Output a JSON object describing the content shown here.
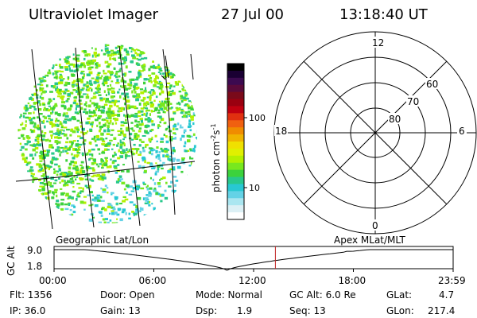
{
  "header": {
    "instrument": "Ultraviolet Imager",
    "date": "27 Jul 00",
    "time": "13:18:40 UT"
  },
  "colorbar": {
    "unit": "photon cm-2s-1",
    "tick_labels": [
      "100",
      "10"
    ],
    "colors": [
      "#000000",
      "#1a0033",
      "#3c0a50",
      "#5a0a3a",
      "#7a0a1a",
      "#9a0010",
      "#c00010",
      "#e03010",
      "#f06010",
      "#f08c00",
      "#f0b400",
      "#f0e000",
      "#e0f000",
      "#b4f000",
      "#78e81e",
      "#3cd23c",
      "#28c88c",
      "#28c8d2",
      "#64d2e6",
      "#aae6f0",
      "#dcf0f5",
      "#ffffff"
    ]
  },
  "polar": {
    "ring_labels": [
      "60",
      "70",
      "80"
    ],
    "mlt_labels": {
      "top": "12",
      "bottom": "0",
      "left": "18",
      "right": "6"
    },
    "title": "Apex MLat/MLT"
  },
  "image_panel": {
    "title": "Geographic Lat/Lon"
  },
  "altitude_plot": {
    "ylabel": "GC Alt",
    "y_ticks": [
      "9.0",
      "1.8"
    ],
    "x_ticks": [
      "00:00",
      "06:00",
      "12:00",
      "18:00",
      "23:59"
    ],
    "current_time_marker": "13:18:40"
  },
  "info": {
    "flt": "Flt: 1356",
    "ip": "IP: 36.0",
    "door": "Door: Open",
    "gain": "Gain: 13",
    "mode": "Mode: Normal",
    "dsp_label": "Dsp:",
    "dsp_value": "1.9",
    "gcalt": "GC Alt: 6.0 Re",
    "seq": "Seq: 13",
    "glat_label": "GLat:",
    "glat_value": "4.7",
    "glon_label": "GLon:",
    "glon_value": "217.4"
  }
}
